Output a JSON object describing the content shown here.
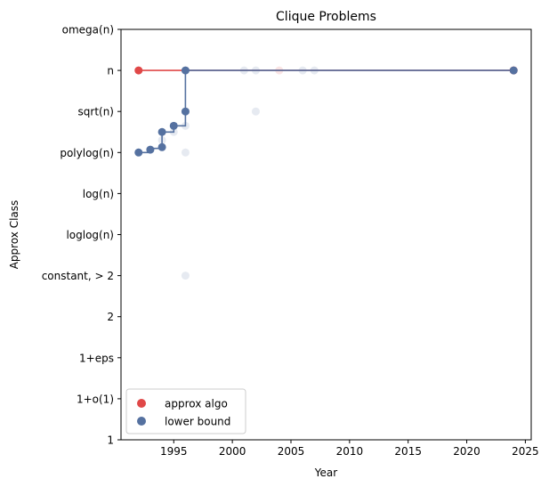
{
  "chart_data": {
    "type": "scatter",
    "title": "Clique Problems",
    "xlabel": "Year",
    "ylabel": "Approx Class",
    "xlim": [
      1990.5,
      2025.5
    ],
    "x_ticks": [
      1995,
      2000,
      2005,
      2010,
      2015,
      2020,
      2025
    ],
    "y_categories": [
      "1",
      "1+o(1)",
      "1+eps",
      "2",
      "constant, > 2",
      "loglog(n)",
      "log(n)",
      "polylog(n)",
      "sqrt(n)",
      "n",
      "omega(n)"
    ],
    "grid": false,
    "legend": {
      "position": "lower-left",
      "entries": [
        {
          "label": "approx algo",
          "color": "#e04848"
        },
        {
          "label": "lower bound",
          "color": "#5571a0"
        }
      ]
    },
    "series": [
      {
        "name": "approx algo",
        "color": "#e04848",
        "points": [
          {
            "x": 1992,
            "y": "n"
          },
          {
            "x": 2024,
            "y": "n"
          }
        ],
        "step_frontier": [
          {
            "x": 1992,
            "y": "n"
          },
          {
            "x": 2024,
            "y": "n"
          }
        ],
        "faded_points": [
          {
            "x": 2004,
            "y": "n"
          }
        ]
      },
      {
        "name": "lower bound",
        "color": "#5571a0",
        "points": [
          {
            "x": 1992,
            "y": "polylog(n)"
          },
          {
            "x": 1993,
            "y": "polylog(n)"
          },
          {
            "x": 1994,
            "y": "polylog(n)"
          },
          {
            "x": 1994,
            "y": "sqrt(n)"
          },
          {
            "x": 1995,
            "y": "sqrt(n)"
          },
          {
            "x": 1996,
            "y": "sqrt(n)"
          },
          {
            "x": 1996,
            "y": "n"
          },
          {
            "x": 2024,
            "y": "n"
          }
        ],
        "step_frontier": [
          {
            "x": 1992,
            "y": 7
          },
          {
            "x": 1993,
            "y": 7
          },
          {
            "x": 1993,
            "y": 7.1
          },
          {
            "x": 1994,
            "y": 7.1
          },
          {
            "x": 1994,
            "y": 7.5
          },
          {
            "x": 1995,
            "y": 7.5
          },
          {
            "x": 1995,
            "y": 7.65
          },
          {
            "x": 1996,
            "y": 7.65
          },
          {
            "x": 1996,
            "y": 8
          },
          {
            "x": 1996,
            "y": 9
          },
          {
            "x": 2024,
            "y": 9
          }
        ],
        "point_y_values": [
          7,
          7.07,
          7.13,
          7.5,
          7.65,
          8,
          9,
          9
        ],
        "faded_points": [
          {
            "x": 1994,
            "y": 7.3
          },
          {
            "x": 1995,
            "y": 7.5
          },
          {
            "x": 1996,
            "y": 7.65
          },
          {
            "x": 1996,
            "y": 7
          },
          {
            "x": 1996,
            "y": 4
          },
          {
            "x": 2001,
            "y": 9
          },
          {
            "x": 2002,
            "y": 9
          },
          {
            "x": 2002,
            "y": 8
          },
          {
            "x": 2006,
            "y": 9
          },
          {
            "x": 2007,
            "y": 9
          }
        ]
      }
    ]
  }
}
